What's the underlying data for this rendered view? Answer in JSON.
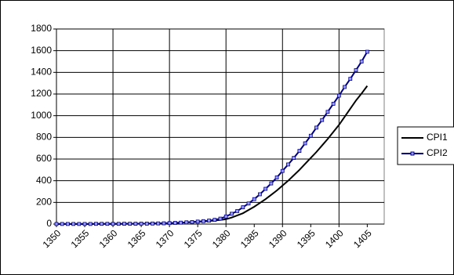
{
  "chart_data": {
    "type": "line",
    "x": [
      1350,
      1351,
      1352,
      1353,
      1354,
      1355,
      1356,
      1357,
      1358,
      1359,
      1360,
      1361,
      1362,
      1363,
      1364,
      1365,
      1366,
      1367,
      1368,
      1369,
      1370,
      1371,
      1372,
      1373,
      1374,
      1375,
      1376,
      1377,
      1378,
      1379,
      1380,
      1381,
      1382,
      1383,
      1384,
      1385,
      1386,
      1387,
      1388,
      1389,
      1390,
      1391,
      1392,
      1393,
      1394,
      1395,
      1396,
      1397,
      1398,
      1399,
      1400,
      1401,
      1402,
      1403,
      1404,
      1405
    ],
    "series": [
      {
        "name": "CPI1",
        "color": "#000000",
        "marker": false,
        "values": [
          1,
          1,
          1,
          1,
          1,
          1,
          1,
          2,
          2,
          2,
          2,
          2,
          3,
          3,
          3,
          4,
          4,
          5,
          6,
          7,
          9,
          11,
          13,
          15,
          18,
          21,
          24,
          28,
          33,
          38,
          45,
          60,
          80,
          100,
          130,
          160,
          195,
          230,
          270,
          310,
          355,
          400,
          450,
          500,
          555,
          610,
          665,
          725,
          785,
          850,
          915,
          990,
          1065,
          1140,
          1205,
          1275
        ]
      },
      {
        "name": "CPI2",
        "color": "#000080",
        "marker": true,
        "values": [
          1,
          1,
          1,
          1,
          1,
          1,
          1,
          2,
          2,
          2,
          2,
          2,
          3,
          3,
          3,
          4,
          4,
          5,
          6,
          7,
          9,
          11,
          13,
          16,
          19,
          23,
          27,
          32,
          39,
          50,
          70,
          95,
          120,
          155,
          190,
          230,
          275,
          325,
          375,
          430,
          490,
          550,
          610,
          675,
          745,
          815,
          890,
          960,
          1035,
          1110,
          1185,
          1265,
          1340,
          1420,
          1500,
          1590
        ]
      }
    ],
    "xlim": [
      1350,
      1408
    ],
    "xticks": [
      1350,
      1355,
      1360,
      1365,
      1370,
      1375,
      1380,
      1385,
      1390,
      1395,
      1400,
      1405
    ],
    "ylim": [
      0,
      1800
    ],
    "yticks": [
      0,
      200,
      400,
      600,
      800,
      1000,
      1200,
      1400,
      1600,
      1800
    ],
    "grid": true,
    "legend": "right"
  }
}
